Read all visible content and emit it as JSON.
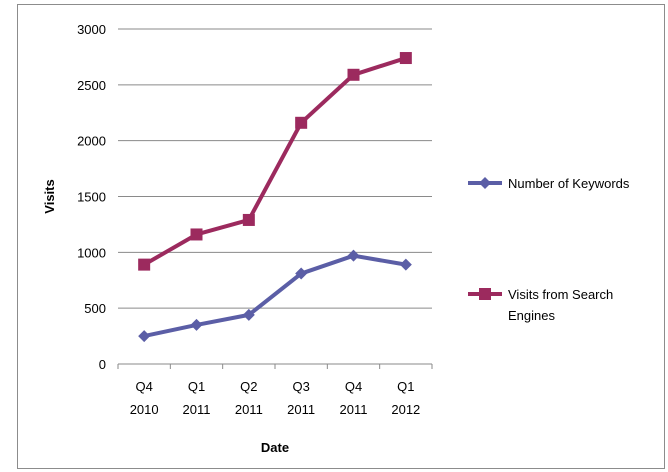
{
  "chart_data": {
    "type": "line",
    "categories": [
      [
        "Q4",
        "2010"
      ],
      [
        "Q1",
        "2011"
      ],
      [
        "Q2",
        "2011"
      ],
      [
        "Q3",
        "2011"
      ],
      [
        "Q4",
        "2011"
      ],
      [
        "Q1",
        "2012"
      ]
    ],
    "xlabel": "Date",
    "ylabel": "Visits",
    "ylim": [
      0,
      3000
    ],
    "yticks": [
      0,
      500,
      1000,
      1500,
      2000,
      2500,
      3000
    ],
    "grid": true,
    "legend": {
      "placement": "right"
    },
    "series": [
      {
        "name": "Number of Keywords",
        "legend_lines": [
          "Number of Keywords"
        ],
        "marker": "diamond",
        "color": "#5b5ea6",
        "values": [
          250,
          350,
          440,
          810,
          970,
          890
        ]
      },
      {
        "name": "Visits from Search Engines",
        "legend_lines": [
          "Visits from Search",
          "Engines"
        ],
        "marker": "square",
        "color": "#9c2a5e",
        "values": [
          890,
          1160,
          1290,
          2160,
          2590,
          2740
        ]
      }
    ]
  }
}
